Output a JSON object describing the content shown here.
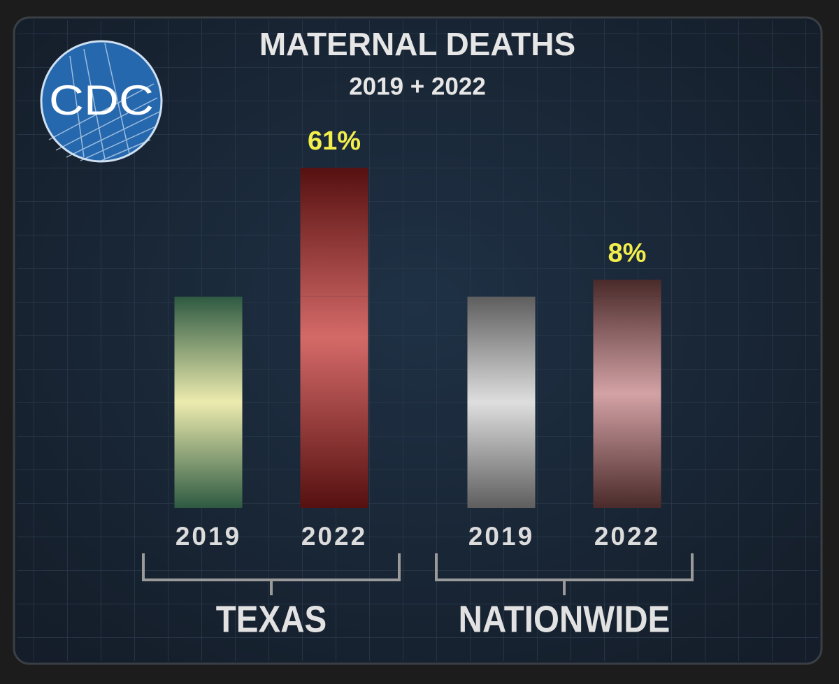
{
  "chart_data": {
    "type": "bar",
    "title": "MATERNAL DEATHS",
    "subtitle": "2019 + 2022",
    "logo": "CDC",
    "groups": [
      {
        "name": "TEXAS",
        "categories": [
          "2019",
          "2022"
        ]
      },
      {
        "name": "NATIONWIDE",
        "categories": [
          "2019",
          "2022"
        ]
      }
    ],
    "series": [
      {
        "values": [
          100,
          100,
          100,
          100
        ]
      },
      {
        "values": [
          null,
          61,
          null,
          8
        ],
        "value_labels": [
          null,
          "61%",
          null,
          "8%"
        ],
        "color": "#f2ee4c"
      }
    ],
    "bar_colors": [
      [
        "#2e5a42",
        "#ecebae"
      ],
      [
        "#561010",
        "#d46a68"
      ],
      [
        "#5e5e5e",
        "#dedede"
      ],
      [
        "#4a2a2a",
        "#d3a2a5"
      ]
    ],
    "ylim": [
      0,
      170
    ]
  }
}
